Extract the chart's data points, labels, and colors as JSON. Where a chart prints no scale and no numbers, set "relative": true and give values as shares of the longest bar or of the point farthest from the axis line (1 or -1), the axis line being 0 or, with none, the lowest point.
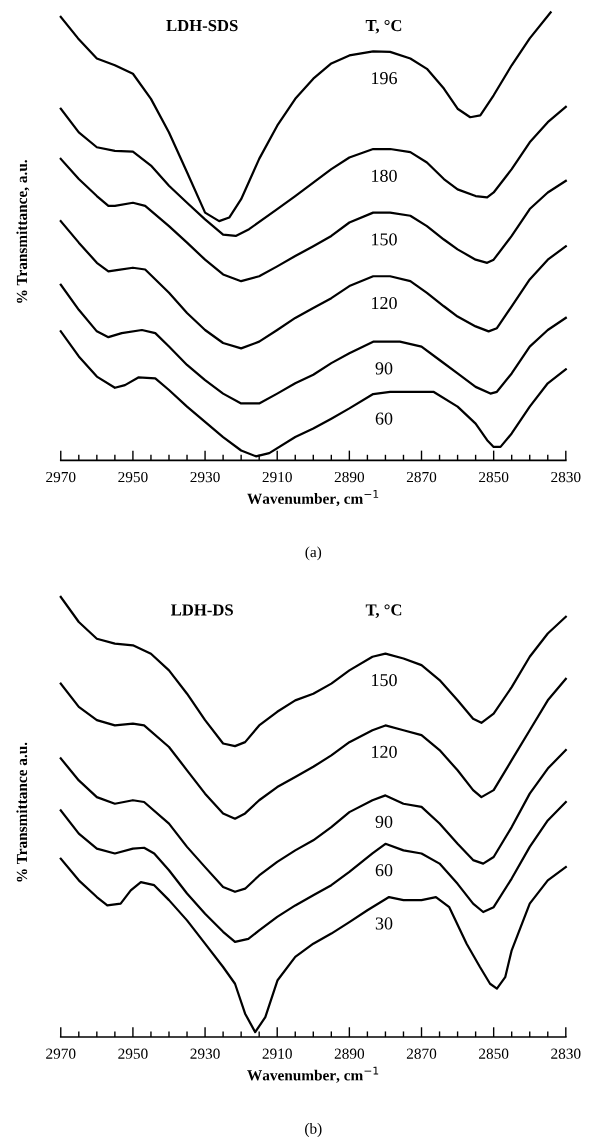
{
  "chart_data": [
    {
      "type": "line",
      "relative": true,
      "xlabel": "Wavenumber, cm$^{−1}$",
      "ylabel": "% Transmittance, a.u.",
      "annotations": [
        "LDH-SDS",
        "T, °C",
        "(a)"
      ],
      "tick_labels": "x",
      "legend": false,
      "grid": false,
      "marker": "none",
      "line_style": "solid",
      "xlim": [
        2970,
        2830
      ],
      "xticks": [
        2970,
        {
          "value": 2965,
          "label": null
        },
        {
          "value": 2960,
          "label": null
        },
        {
          "value": 2955,
          "label": null
        },
        2950,
        {
          "value": 2945,
          "label": null
        },
        {
          "value": 2940,
          "label": null
        },
        {
          "value": 2935,
          "label": null
        },
        2930,
        {
          "value": 2925,
          "label": null
        },
        {
          "value": 2920,
          "label": null
        },
        {
          "value": 2915,
          "label": null
        },
        2910,
        {
          "value": 2905,
          "label": null
        },
        {
          "value": 2900,
          "label": null
        },
        {
          "value": 2895,
          "label": null
        },
        2890,
        {
          "value": 2885,
          "label": null
        },
        {
          "value": 2880,
          "label": null
        },
        {
          "value": 2875,
          "label": null
        },
        2870,
        {
          "value": 2865,
          "label": null
        },
        {
          "value": 2860,
          "label": null
        },
        {
          "value": 2855,
          "label": null
        },
        2850,
        {
          "value": 2845,
          "label": null
        },
        {
          "value": 2840,
          "label": null
        },
        {
          "value": 2835,
          "label": null
        },
        2830
      ],
      "series": [
        {
          "name": "196",
          "color": "#000000",
          "x": [
            2970,
            2965.2,
            2960,
            2955,
            2950,
            2945,
            2940,
            2935,
            2930,
            2926.1,
            2923.3,
            2920,
            2915,
            2910,
            2905,
            2900,
            2895,
            2890,
            2883.4,
            2878.7,
            2873.1,
            2868.5,
            2863.8,
            2860,
            2856.5,
            2853.7,
            2850,
            2845,
            2840,
            2834.2
          ],
          "values": [
            0.99,
            0.942,
            0.897,
            0.882,
            0.863,
            0.807,
            0.732,
            0.643,
            0.553,
            0.534,
            0.542,
            0.583,
            0.673,
            0.747,
            0.807,
            0.852,
            0.886,
            0.904,
            0.913,
            0.912,
            0.897,
            0.874,
            0.83,
            0.785,
            0.766,
            0.77,
            0.815,
            0.882,
            0.942,
            1.0
          ]
        },
        {
          "name": "180",
          "color": "#000000",
          "x": [
            2970,
            2965,
            2960,
            2955,
            2950,
            2945,
            2940,
            2935,
            2930,
            2925,
            2921.5,
            2917.8,
            2910,
            2905,
            2900,
            2895,
            2890,
            2883.4,
            2878.7,
            2873.1,
            2868.5,
            2863.8,
            2860,
            2855,
            2851.8,
            2850,
            2845,
            2840,
            2835,
            2830
          ],
          "values": [
            0.785,
            0.732,
            0.699,
            0.691,
            0.689,
            0.658,
            0.613,
            0.575,
            0.538,
            0.504,
            0.501,
            0.516,
            0.561,
            0.59,
            0.62,
            0.65,
            0.676,
            0.695,
            0.695,
            0.688,
            0.665,
            0.628,
            0.605,
            0.59,
            0.587,
            0.598,
            0.65,
            0.71,
            0.755,
            0.789
          ]
        },
        {
          "name": "150",
          "color": "#000000",
          "x": [
            2970,
            2965,
            2960,
            2956.8,
            2955,
            2950,
            2946.6,
            2940,
            2935,
            2930,
            2925,
            2920,
            2915,
            2910,
            2905,
            2900,
            2895,
            2890,
            2883.4,
            2878.7,
            2873.1,
            2868.5,
            2863.8,
            2860,
            2855,
            2851.8,
            2850,
            2845,
            2840,
            2835,
            2830
          ],
          "values": [
            0.673,
            0.628,
            0.59,
            0.568,
            0.568,
            0.575,
            0.568,
            0.523,
            0.486,
            0.448,
            0.415,
            0.4,
            0.411,
            0.433,
            0.456,
            0.478,
            0.501,
            0.531,
            0.553,
            0.553,
            0.546,
            0.523,
            0.493,
            0.471,
            0.448,
            0.441,
            0.448,
            0.501,
            0.561,
            0.598,
            0.624
          ]
        },
        {
          "name": "120",
          "color": "#000000",
          "x": [
            2970,
            2965,
            2960,
            2956.8,
            2954,
            2950,
            2946.6,
            2940,
            2935,
            2930,
            2925,
            2920,
            2915,
            2910,
            2905,
            2900,
            2895,
            2890,
            2883.4,
            2878.7,
            2873.1,
            2868.5,
            2863.8,
            2860,
            2855,
            2851.4,
            2849.1,
            2845,
            2840,
            2835,
            2830
          ],
          "values": [
            0.534,
            0.486,
            0.441,
            0.422,
            0.425,
            0.43,
            0.426,
            0.374,
            0.329,
            0.291,
            0.262,
            0.25,
            0.265,
            0.291,
            0.318,
            0.34,
            0.362,
            0.389,
            0.411,
            0.411,
            0.4,
            0.374,
            0.344,
            0.321,
            0.299,
            0.288,
            0.295,
            0.344,
            0.404,
            0.448,
            0.478
          ]
        },
        {
          "name": "90",
          "color": "#000000",
          "x": [
            2970,
            2965,
            2960,
            2956.8,
            2953.1,
            2947.5,
            2943.8,
            2940,
            2935,
            2930,
            2925,
            2920,
            2915,
            2910,
            2905,
            2900,
            2895,
            2890,
            2883.4,
            2876,
            2870,
            2865,
            2860,
            2855,
            2850.9,
            2849.1,
            2845,
            2840,
            2835,
            2830
          ],
          "values": [
            0.392,
            0.336,
            0.288,
            0.275,
            0.284,
            0.291,
            0.284,
            0.254,
            0.213,
            0.179,
            0.149,
            0.127,
            0.127,
            0.149,
            0.172,
            0.191,
            0.217,
            0.239,
            0.265,
            0.265,
            0.254,
            0.224,
            0.194,
            0.164,
            0.149,
            0.153,
            0.194,
            0.254,
            0.291,
            0.318
          ]
        },
        {
          "name": "60",
          "color": "#000000",
          "x": [
            2970,
            2965,
            2960,
            2955,
            2952.2,
            2948.5,
            2943.8,
            2940,
            2935,
            2930,
            2925,
            2920,
            2915.9,
            2912.2,
            2905,
            2900,
            2895,
            2890,
            2883.4,
            2878.7,
            2866.7,
            2860,
            2855,
            2851.8,
            2850,
            2848.1,
            2845,
            2840,
            2835,
            2830
          ],
          "values": [
            0.288,
            0.232,
            0.187,
            0.162,
            0.168,
            0.185,
            0.183,
            0.157,
            0.12,
            0.086,
            0.052,
            0.022,
            0.009,
            0.016,
            0.052,
            0.071,
            0.093,
            0.116,
            0.148,
            0.153,
            0.153,
            0.12,
            0.082,
            0.045,
            0.03,
            0.03,
            0.06,
            0.12,
            0.172,
            0.203
          ]
        }
      ]
    },
    {
      "type": "line",
      "relative": true,
      "xlabel": "Wavenumber, cm$^{−1}$",
      "ylabel": "% Transmittance a.u.",
      "annotations": [
        "LDH-DS",
        "T, °C",
        "(b)"
      ],
      "tick_labels": "x",
      "legend": false,
      "grid": false,
      "marker": "none",
      "line_style": "solid",
      "xlim": [
        2970,
        2830
      ],
      "xticks": [
        2970,
        {
          "value": 2965,
          "label": null
        },
        {
          "value": 2960,
          "label": null
        },
        {
          "value": 2955,
          "label": null
        },
        2950,
        {
          "value": 2945,
          "label": null
        },
        {
          "value": 2940,
          "label": null
        },
        {
          "value": 2935,
          "label": null
        },
        2930,
        {
          "value": 2925,
          "label": null
        },
        {
          "value": 2920,
          "label": null
        },
        {
          "value": 2915,
          "label": null
        },
        2910,
        {
          "value": 2905,
          "label": null
        },
        {
          "value": 2900,
          "label": null
        },
        {
          "value": 2895,
          "label": null
        },
        2890,
        {
          "value": 2885,
          "label": null
        },
        {
          "value": 2880,
          "label": null
        },
        {
          "value": 2875,
          "label": null
        },
        2870,
        {
          "value": 2865,
          "label": null
        },
        {
          "value": 2860,
          "label": null
        },
        {
          "value": 2855,
          "label": null
        },
        2850,
        {
          "value": 2845,
          "label": null
        },
        {
          "value": 2840,
          "label": null
        },
        {
          "value": 2835,
          "label": null
        },
        2830
      ],
      "series": [
        {
          "name": "150",
          "color": "#000000",
          "x": [
            2970,
            2965,
            2960,
            2955,
            2950,
            2945,
            2940,
            2935,
            2930,
            2925,
            2921.7,
            2918.9,
            2915,
            2910,
            2905,
            2900,
            2895,
            2890,
            2883.6,
            2880,
            2875,
            2870,
            2865,
            2860,
            2855.7,
            2853.4,
            2850,
            2845,
            2840,
            2835,
            2830
          ],
          "values": [
            1.0,
            0.943,
            0.905,
            0.894,
            0.89,
            0.871,
            0.833,
            0.78,
            0.72,
            0.667,
            0.661,
            0.67,
            0.708,
            0.739,
            0.765,
            0.78,
            0.803,
            0.833,
            0.864,
            0.871,
            0.86,
            0.845,
            0.811,
            0.765,
            0.723,
            0.714,
            0.735,
            0.795,
            0.864,
            0.917,
            0.955
          ]
        },
        {
          "name": "120",
          "color": "#000000",
          "x": [
            2970,
            2965,
            2960,
            2955,
            2950,
            2946.9,
            2940,
            2935,
            2930,
            2925,
            2921.7,
            2918.9,
            2915,
            2910,
            2905,
            2900,
            2895,
            2890,
            2883.6,
            2880,
            2875,
            2870,
            2865,
            2860,
            2855.7,
            2853.4,
            2850,
            2845,
            2840,
            2835,
            2830
          ],
          "values": [
            0.803,
            0.75,
            0.72,
            0.708,
            0.712,
            0.708,
            0.659,
            0.606,
            0.553,
            0.508,
            0.496,
            0.508,
            0.538,
            0.568,
            0.591,
            0.614,
            0.64,
            0.67,
            0.697,
            0.708,
            0.697,
            0.686,
            0.652,
            0.606,
            0.561,
            0.545,
            0.561,
            0.629,
            0.697,
            0.765,
            0.814
          ]
        },
        {
          "name": "90",
          "color": "#000000",
          "x": [
            2970,
            2965,
            2960,
            2955,
            2950,
            2946.9,
            2940,
            2935,
            2930,
            2925,
            2921.7,
            2918.9,
            2915,
            2910,
            2905,
            2900,
            2895,
            2890,
            2883.6,
            2880,
            2875,
            2870,
            2865,
            2860,
            2855.7,
            2852.9,
            2850,
            2845,
            2840,
            2835,
            2830
          ],
          "values": [
            0.633,
            0.583,
            0.545,
            0.53,
            0.538,
            0.534,
            0.485,
            0.432,
            0.386,
            0.341,
            0.33,
            0.337,
            0.367,
            0.398,
            0.424,
            0.447,
            0.477,
            0.511,
            0.538,
            0.549,
            0.53,
            0.523,
            0.485,
            0.439,
            0.402,
            0.394,
            0.409,
            0.477,
            0.553,
            0.61,
            0.652
          ]
        },
        {
          "name": "60",
          "color": "#000000",
          "x": [
            2970,
            2965,
            2960,
            2955,
            2950,
            2946.9,
            2944.1,
            2940,
            2935,
            2930,
            2925,
            2921.7,
            2918,
            2915,
            2910,
            2905,
            2900,
            2895,
            2890,
            2883.6,
            2880,
            2875,
            2870,
            2865,
            2860,
            2855.7,
            2852.9,
            2850,
            2845,
            2840,
            2835,
            2830
          ],
          "values": [
            0.515,
            0.462,
            0.428,
            0.417,
            0.428,
            0.43,
            0.417,
            0.379,
            0.326,
            0.28,
            0.239,
            0.216,
            0.223,
            0.242,
            0.273,
            0.299,
            0.322,
            0.345,
            0.375,
            0.417,
            0.439,
            0.424,
            0.417,
            0.394,
            0.348,
            0.303,
            0.284,
            0.295,
            0.36,
            0.432,
            0.492,
            0.534
          ]
        },
        {
          "name": "30",
          "color": "#000000",
          "x": [
            2970,
            2965,
            2960,
            2957.1,
            2953.4,
            2950.6,
            2947.8,
            2944.1,
            2940,
            2935,
            2930,
            2925,
            2921.7,
            2918.9,
            2916.1,
            2913.3,
            2909.9,
            2905,
            2900,
            2895,
            2890,
            2885,
            2879,
            2875,
            2870,
            2866,
            2862.3,
            2857.5,
            2853.8,
            2851,
            2849.1,
            2846.8,
            2845,
            2840,
            2835,
            2830
          ],
          "values": [
            0.405,
            0.356,
            0.318,
            0.299,
            0.303,
            0.333,
            0.352,
            0.345,
            0.311,
            0.265,
            0.212,
            0.159,
            0.121,
            0.053,
            0.011,
            0.045,
            0.129,
            0.182,
            0.212,
            0.235,
            0.261,
            0.288,
            0.318,
            0.311,
            0.311,
            0.318,
            0.295,
            0.212,
            0.159,
            0.121,
            0.11,
            0.136,
            0.197,
            0.303,
            0.356,
            0.386
          ]
        }
      ]
    }
  ]
}
